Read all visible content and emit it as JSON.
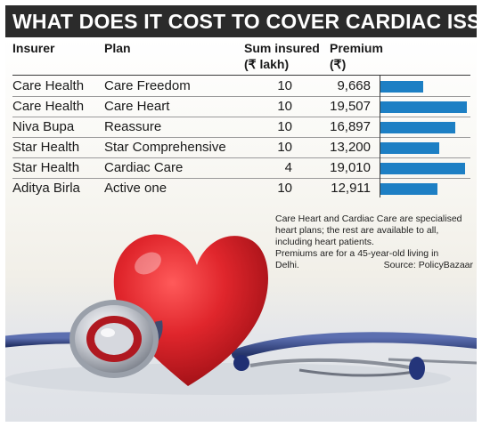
{
  "chart_data": {
    "type": "table",
    "title": "WHAT DOES IT COST TO COVER CARDIAC ISSUES?",
    "columns": [
      "Insurer",
      "Plan",
      "Sum insured",
      "(₹ lakh)",
      "Premium",
      "(₹)"
    ],
    "rows": [
      {
        "insurer": "Care Health",
        "plan": "Care Freedom",
        "sum_insured": "10",
        "premium": "9,668",
        "premium_value": 9668
      },
      {
        "insurer": "Care Health",
        "plan": "Care Heart",
        "sum_insured": "10",
        "premium": "19,507",
        "premium_value": 19507
      },
      {
        "insurer": "Niva Bupa",
        "plan": "Reassure",
        "sum_insured": "10",
        "premium": "16,897",
        "premium_value": 16897
      },
      {
        "insurer": "Star Health",
        "plan": "Star Comprehensive",
        "sum_insured": "10",
        "premium": "13,200",
        "premium_value": 13200
      },
      {
        "insurer": "Star Health",
        "plan": "Cardiac Care",
        "sum_insured": "4",
        "premium": "19,010",
        "premium_value": 19010
      },
      {
        "insurer": "Aditya Birla",
        "plan": "Active one",
        "sum_insured": "10",
        "premium": "12,911",
        "premium_value": 12911
      }
    ],
    "bar_max": 19507,
    "bar_color": "#1d7fc4",
    "note_lines": [
      "Care Heart and Cardiac Care are  specialised",
      "heart plans; the rest are  available to all,",
      "including heart patients.",
      "Premiums are for a 45-year-old living in"
    ],
    "note_last": "Delhi.",
    "source": "Source: PolicyBazaar"
  },
  "colors": {
    "title_bg": "#2b2b2b",
    "heart": "#d8262b",
    "stethoscope": "#3b4c8a"
  },
  "icons": [
    "heart-icon",
    "stethoscope-icon"
  ]
}
